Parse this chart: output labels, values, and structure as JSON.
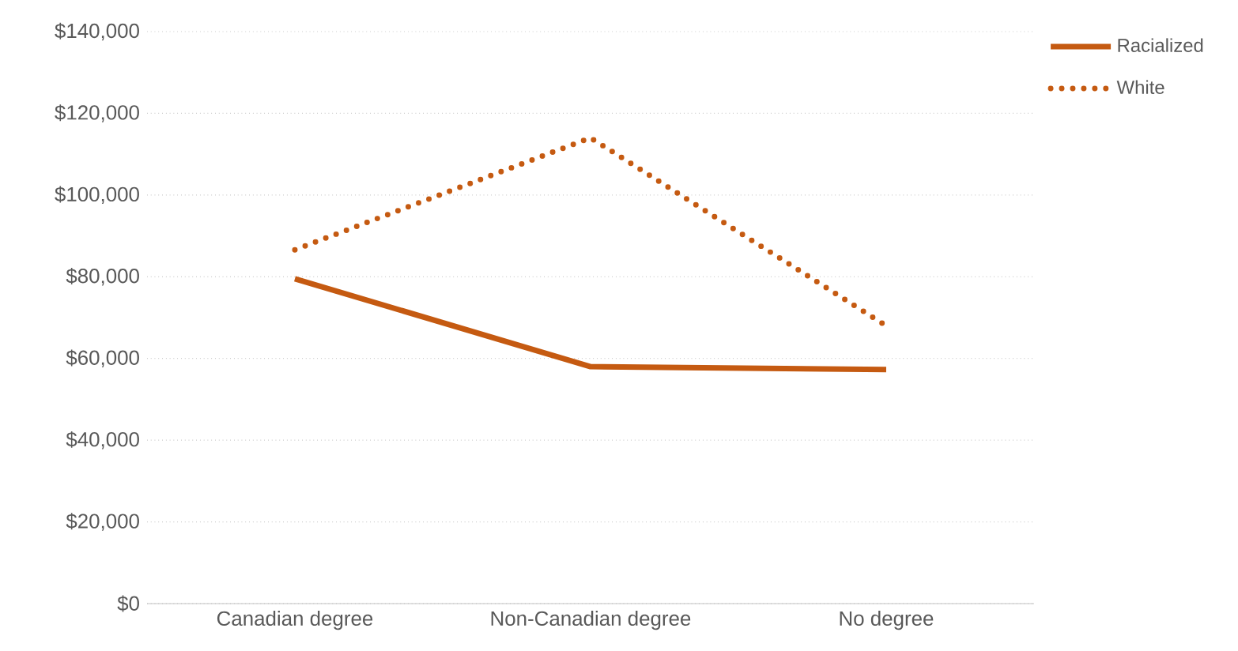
{
  "chart_data": {
    "type": "line",
    "categories": [
      "Canadian degree",
      "Non-Canadian degree",
      "No degree"
    ],
    "series": [
      {
        "name": "Racialized",
        "color": "#c55a11",
        "line_style": "solid",
        "values": [
          79500,
          58000,
          57300
        ]
      },
      {
        "name": "White",
        "color": "#c55a11",
        "line_style": "dotted",
        "values": [
          86600,
          114000,
          68000
        ]
      }
    ],
    "ylim": [
      0,
      140000
    ],
    "yticks": [
      {
        "value": 0,
        "label": "$0"
      },
      {
        "value": 20000,
        "label": "$20,000"
      },
      {
        "value": 40000,
        "label": "$40,000"
      },
      {
        "value": 60000,
        "label": "$60,000"
      },
      {
        "value": 80000,
        "label": "$80,000"
      },
      {
        "value": 100000,
        "label": "$100,000"
      },
      {
        "value": 120000,
        "label": "$120,000"
      },
      {
        "value": 140000,
        "label": "$140,000"
      }
    ],
    "grid": "y",
    "legend": "top right",
    "marker": "none"
  }
}
